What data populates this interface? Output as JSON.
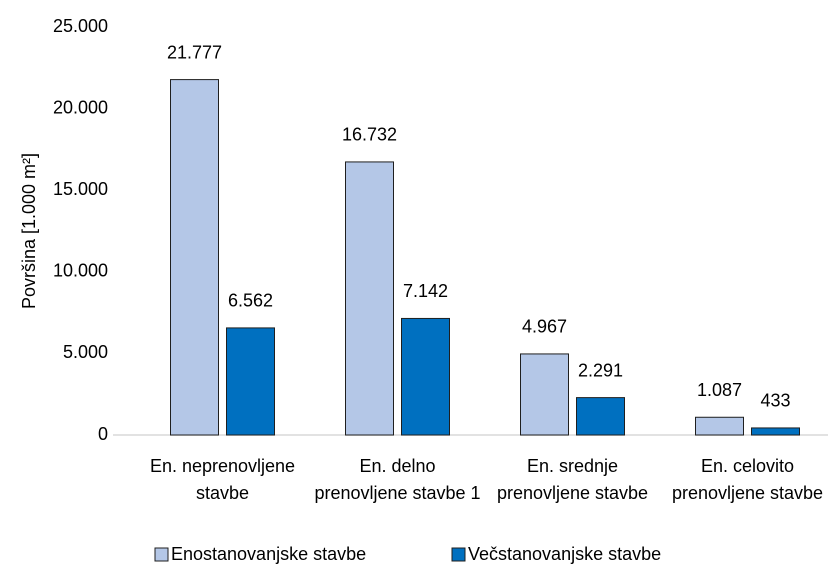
{
  "chart_data": {
    "type": "bar",
    "y_label": "Površina [1.000 m²]",
    "categories": [
      "En. neprenovljene stavbe",
      "En. delno prenovljene stavbe 1",
      "En. srednje prenovljene stavbe",
      "En. celovito prenovljene stavbe"
    ],
    "series": [
      {
        "name": "Enostanovanjske stavbe",
        "color": "#b4c7e7",
        "values": [
          21777,
          16732,
          4967,
          1087
        ],
        "value_labels": [
          "21.777",
          "16.732",
          "4.967",
          "1.087"
        ]
      },
      {
        "name": "Večstanovanjske stavbe",
        "color": "#0070c0",
        "values": [
          6562,
          7142,
          2291,
          433
        ],
        "value_labels": [
          "6.562",
          "7.142",
          "2.291",
          "433"
        ]
      }
    ],
    "ylim": [
      0,
      25000
    ],
    "yticks": [
      0,
      {
        "value": 5000,
        "label": "5.000"
      },
      {
        "value": 10000,
        "label": "10.000"
      },
      {
        "value": 15000,
        "label": "15.000"
      },
      {
        "value": 20000,
        "label": "20.000"
      },
      {
        "value": 25000,
        "label": "25.000"
      }
    ],
    "legend": "bottom"
  }
}
